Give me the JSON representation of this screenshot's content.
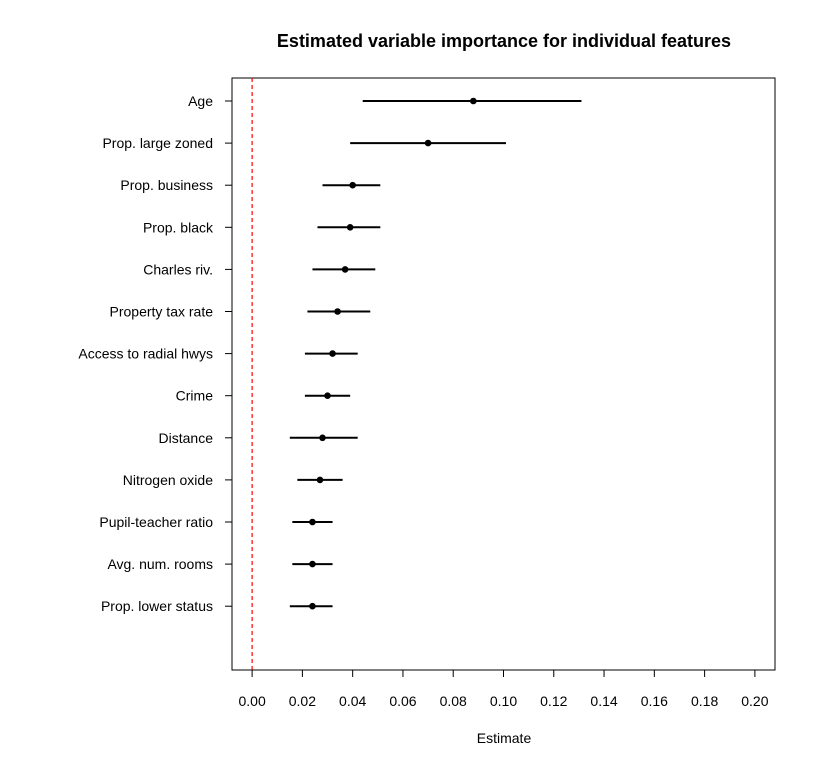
{
  "chart_data": {
    "type": "scatter",
    "title": "Estimated variable importance for individual features",
    "xlabel": "Estimate",
    "ylabel": "",
    "xlim": [
      -0.008,
      0.208
    ],
    "xticks": [
      0.0,
      0.02,
      0.04,
      0.06,
      0.08,
      0.1,
      0.12,
      0.14,
      0.16,
      0.18,
      0.2
    ],
    "xtick_labels": [
      "0.00",
      "0.02",
      "0.04",
      "0.06",
      "0.08",
      "0.10",
      "0.12",
      "0.14",
      "0.16",
      "0.18",
      "0.20"
    ],
    "reference_line": {
      "x": 0.0,
      "color": "#ff0000",
      "style": "dashed"
    },
    "grid": false,
    "point_color": "#000000",
    "features": [
      {
        "name": "Age",
        "estimate": 0.088,
        "lower": 0.044,
        "upper": 0.131
      },
      {
        "name": "Prop. large zoned",
        "estimate": 0.07,
        "lower": 0.039,
        "upper": 0.101
      },
      {
        "name": "Prop. business",
        "estimate": 0.04,
        "lower": 0.028,
        "upper": 0.051
      },
      {
        "name": "Prop. black",
        "estimate": 0.039,
        "lower": 0.026,
        "upper": 0.051
      },
      {
        "name": "Charles riv.",
        "estimate": 0.037,
        "lower": 0.024,
        "upper": 0.049
      },
      {
        "name": "Property tax rate",
        "estimate": 0.034,
        "lower": 0.022,
        "upper": 0.047
      },
      {
        "name": "Access to radial hwys",
        "estimate": 0.032,
        "lower": 0.021,
        "upper": 0.042
      },
      {
        "name": "Crime",
        "estimate": 0.03,
        "lower": 0.021,
        "upper": 0.039
      },
      {
        "name": "Distance",
        "estimate": 0.028,
        "lower": 0.015,
        "upper": 0.042
      },
      {
        "name": "Nitrogen oxide",
        "estimate": 0.027,
        "lower": 0.018,
        "upper": 0.036
      },
      {
        "name": "Pupil-teacher ratio",
        "estimate": 0.024,
        "lower": 0.016,
        "upper": 0.032
      },
      {
        "name": "Avg. num. rooms",
        "estimate": 0.024,
        "lower": 0.016,
        "upper": 0.032
      },
      {
        "name": "Prop. lower status",
        "estimate": 0.024,
        "lower": 0.015,
        "upper": 0.032
      }
    ]
  }
}
